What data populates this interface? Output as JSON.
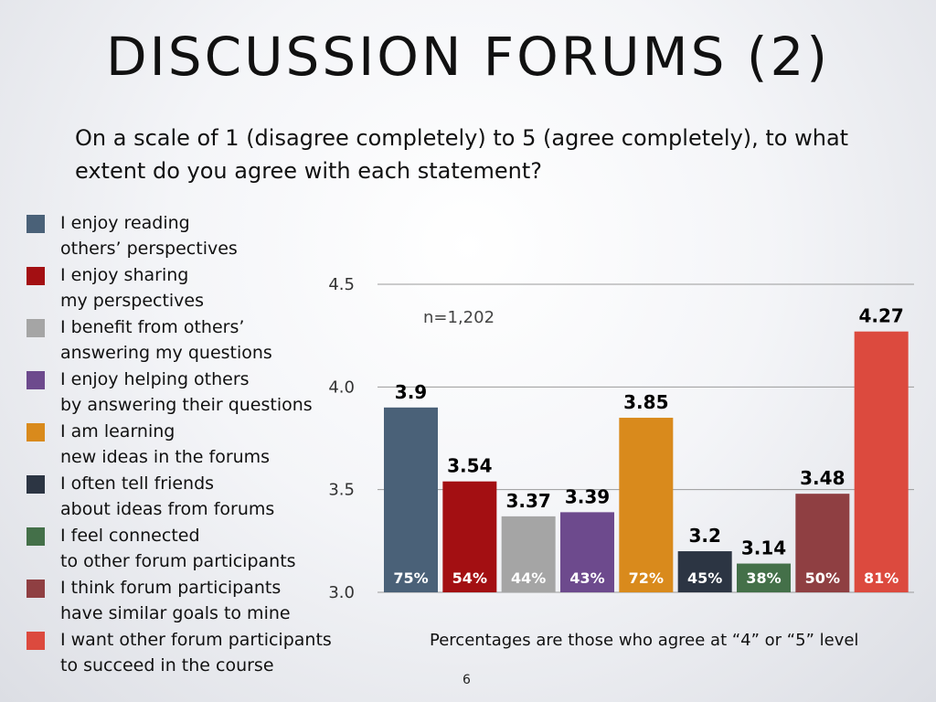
{
  "slide": {
    "title": "DISCUSSION  FORUMS  (2)",
    "subtitle": "On a scale of 1 (disagree completely) to 5 (agree completely), to what extent do you agree with each statement?",
    "page_number": "6"
  },
  "chart_data": {
    "type": "bar",
    "title": "",
    "xlabel": "",
    "ylabel": "",
    "ylim": [
      3.0,
      4.5
    ],
    "yticks": [
      "3.0",
      "3.5",
      "4.0",
      "4.5"
    ],
    "grid": true,
    "legend_position": "left",
    "annotation": "n=1,202",
    "note": "Percentages are those who agree at “4” or “5” level",
    "series": [
      {
        "name": "I enjoy reading others’ perspectives",
        "lines": [
          "I enjoy reading",
          "others’ perspectives"
        ],
        "value": 3.9,
        "value_label": "3.9",
        "percent_label": "75%",
        "color": "#4a6178"
      },
      {
        "name": "I enjoy sharing my perspectives",
        "lines": [
          "I enjoy sharing",
          "my perspectives"
        ],
        "value": 3.54,
        "value_label": "3.54",
        "percent_label": "54%",
        "color": "#a30f12"
      },
      {
        "name": "I benefit from others’ answering my questions",
        "lines": [
          "I benefit from others’",
          "answering my questions"
        ],
        "value": 3.37,
        "value_label": "3.37",
        "percent_label": "44%",
        "color": "#a5a5a5"
      },
      {
        "name": "I enjoy helping others by answering their questions",
        "lines": [
          "I enjoy helping others",
          "by answering their questions"
        ],
        "value": 3.39,
        "value_label": "3.39",
        "percent_label": "43%",
        "color": "#6d4a8d"
      },
      {
        "name": "I am learning new ideas in the forums",
        "lines": [
          "I am learning",
          "new ideas in the forums"
        ],
        "value": 3.85,
        "value_label": "3.85",
        "percent_label": "72%",
        "color": "#d98a1c"
      },
      {
        "name": "I often tell friends about ideas from forums",
        "lines": [
          "I often tell friends",
          "about ideas from forums"
        ],
        "value": 3.2,
        "value_label": "3.2",
        "percent_label": "45%",
        "color": "#2c3543"
      },
      {
        "name": "I feel connected to other forum participants",
        "lines": [
          "I feel connected",
          "to other forum participants"
        ],
        "value": 3.14,
        "value_label": "3.14",
        "percent_label": "38%",
        "color": "#447049"
      },
      {
        "name": "I think forum participants have similar goals to mine",
        "lines": [
          "I think forum participants",
          "have similar goals to mine"
        ],
        "value": 3.48,
        "value_label": "3.48",
        "percent_label": "50%",
        "color": "#8f3f42"
      },
      {
        "name": "I want other forum participants to succeed in the course",
        "lines": [
          "I want other forum participants",
          "to succeed in the course"
        ],
        "value": 4.27,
        "value_label": "4.27",
        "percent_label": "81%",
        "color": "#dc4a3e"
      }
    ]
  }
}
